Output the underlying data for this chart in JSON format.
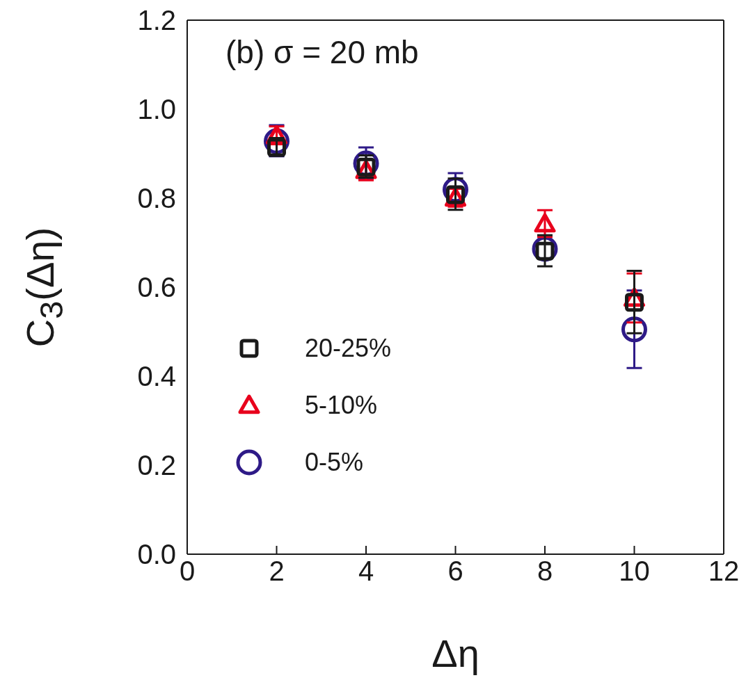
{
  "chart_data": {
    "type": "scatter",
    "xlabel": "Δη",
    "ylabel": "C$_{3}$(Δη)",
    "annotations": [
      "(b) σ = 20 mb"
    ],
    "xlim": [
      0,
      12
    ],
    "xticks": [
      0,
      2,
      4,
      6,
      8,
      10,
      12
    ],
    "ylim": [
      0,
      1.2
    ],
    "yticks": [
      {
        "value": 0,
        "label": "0.0"
      },
      {
        "value": 0.2,
        "label": "0.2"
      },
      {
        "value": 0.4,
        "label": "0.4"
      },
      {
        "value": 0.6,
        "label": "0.6"
      },
      {
        "value": 0.8,
        "label": "0.8"
      },
      {
        "value": 1,
        "label": "1.0"
      },
      {
        "value": 1.2,
        "label": "1.2"
      }
    ],
    "x": [
      2,
      4,
      6,
      8,
      10
    ],
    "grid": false,
    "legend": "left",
    "series": [
      {
        "name": "20-25%",
        "color": "#1a1a1a",
        "marker": "square",
        "values": [
          0.914,
          0.87,
          0.808,
          0.681,
          0.566
        ],
        "errors": [
          0.02,
          0.025,
          0.035,
          0.035,
          0.07
        ]
      },
      {
        "name": "5-10%",
        "color": "#e8001c",
        "marker": "triangle",
        "values": [
          0.94,
          0.862,
          0.8,
          0.742,
          0.575
        ],
        "errors": [
          0.02,
          0.023,
          0.02,
          0.03,
          0.055
        ]
      },
      {
        "name": "0-5%",
        "color": "#2e1a87",
        "marker": "circle",
        "values": [
          0.928,
          0.878,
          0.819,
          0.686,
          0.505
        ],
        "errors": [
          0.035,
          0.035,
          0.036,
          null,
          0.087
        ]
      }
    ]
  }
}
